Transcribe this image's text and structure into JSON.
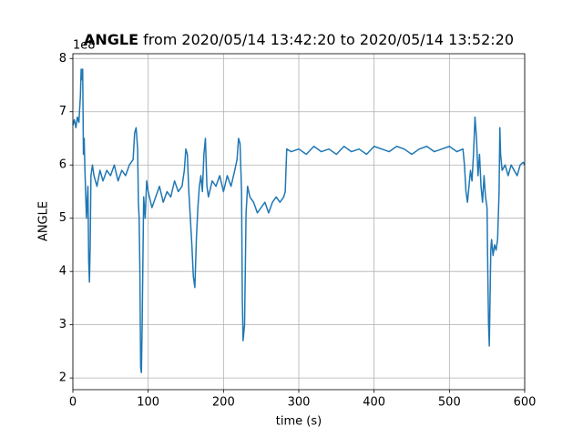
{
  "chart_data": {
    "type": "line",
    "title_parts": [
      "ANGLE",
      "from 2020/05/14 13:42:20 to 2020/05/14 13:52:20"
    ],
    "y_offset_label": "1e8",
    "xlabel": "time (s)",
    "ylabel": "ANGLE",
    "color": "#1f77b4",
    "grid": true,
    "xlim": [
      0,
      600
    ],
    "xticks": [
      0,
      100,
      200,
      300,
      400,
      500,
      600
    ],
    "ylim": [
      1.78,
      8.09
    ],
    "yticks": [
      2,
      3,
      4,
      5,
      6,
      7,
      8
    ],
    "x": [
      0,
      2,
      4,
      6,
      8,
      10,
      11,
      12,
      13,
      14,
      15,
      16,
      18,
      20,
      21,
      22,
      23,
      24,
      26,
      28,
      32,
      36,
      40,
      45,
      50,
      55,
      60,
      65,
      70,
      75,
      80,
      82,
      84,
      86,
      87,
      88,
      89,
      90,
      91,
      92,
      94,
      96,
      98,
      100,
      105,
      110,
      115,
      120,
      125,
      130,
      135,
      140,
      145,
      148,
      150,
      152,
      154,
      156,
      158,
      160,
      162,
      164,
      166,
      168,
      170,
      172,
      174,
      176,
      178,
      180,
      185,
      190,
      195,
      200,
      205,
      210,
      215,
      218,
      220,
      222,
      224,
      225,
      226,
      228,
      230,
      232,
      235,
      240,
      245,
      250,
      255,
      260,
      265,
      270,
      275,
      280,
      282,
      284,
      290,
      300,
      310,
      320,
      330,
      340,
      350,
      360,
      370,
      380,
      390,
      400,
      410,
      420,
      430,
      440,
      450,
      460,
      470,
      480,
      490,
      500,
      510,
      518,
      520,
      522,
      524,
      526,
      528,
      530,
      532,
      534,
      536,
      538,
      540,
      542,
      544,
      546,
      548,
      550,
      551,
      552,
      553,
      554,
      555,
      556,
      558,
      560,
      562,
      564,
      566,
      567,
      568,
      570,
      574,
      578,
      582,
      586,
      590,
      594,
      598,
      600
    ],
    "values": [
      6.75,
      6.85,
      6.7,
      6.9,
      6.8,
      7.3,
      7.8,
      7.6,
      7.8,
      6.2,
      6.5,
      5.9,
      5.0,
      5.6,
      4.2,
      3.8,
      4.5,
      5.8,
      6.0,
      5.8,
      5.6,
      5.9,
      5.7,
      5.9,
      5.8,
      6.0,
      5.7,
      5.9,
      5.8,
      6.0,
      6.1,
      6.6,
      6.7,
      6.3,
      5.3,
      5.0,
      4.0,
      2.2,
      2.1,
      3.0,
      5.4,
      5.0,
      5.7,
      5.5,
      5.2,
      5.4,
      5.6,
      5.3,
      5.5,
      5.4,
      5.7,
      5.5,
      5.6,
      5.9,
      6.3,
      6.2,
      5.5,
      5.0,
      4.5,
      3.9,
      3.7,
      4.6,
      5.2,
      5.6,
      5.8,
      5.5,
      6.2,
      6.5,
      5.6,
      5.4,
      5.7,
      5.6,
      5.8,
      5.5,
      5.8,
      5.6,
      5.9,
      6.1,
      6.5,
      6.4,
      5.5,
      3.5,
      2.7,
      3.0,
      5.1,
      5.6,
      5.4,
      5.3,
      5.1,
      5.2,
      5.3,
      5.1,
      5.3,
      5.4,
      5.3,
      5.4,
      5.5,
      6.3,
      6.25,
      6.3,
      6.2,
      6.35,
      6.25,
      6.3,
      6.2,
      6.35,
      6.25,
      6.3,
      6.2,
      6.35,
      6.3,
      6.25,
      6.35,
      6.3,
      6.2,
      6.3,
      6.35,
      6.25,
      6.3,
      6.35,
      6.25,
      6.3,
      6.0,
      5.5,
      5.3,
      5.6,
      5.9,
      5.7,
      6.2,
      6.9,
      6.5,
      5.8,
      6.2,
      5.6,
      5.3,
      5.8,
      5.4,
      5.2,
      4.0,
      3.0,
      2.6,
      3.5,
      4.4,
      4.6,
      4.3,
      4.5,
      4.4,
      4.6,
      5.5,
      6.7,
      6.2,
      5.9,
      6.0,
      5.8,
      6.0,
      5.9,
      5.8,
      6.0,
      6.05,
      6.0
    ]
  }
}
